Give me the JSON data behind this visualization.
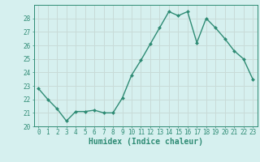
{
  "x": [
    0,
    1,
    2,
    3,
    4,
    5,
    6,
    7,
    8,
    9,
    10,
    11,
    12,
    13,
    14,
    15,
    16,
    17,
    18,
    19,
    20,
    21,
    22,
    23
  ],
  "y": [
    22.8,
    22.0,
    21.3,
    20.4,
    21.1,
    21.1,
    21.2,
    21.0,
    21.0,
    22.1,
    23.8,
    24.9,
    26.1,
    27.3,
    28.5,
    28.2,
    28.5,
    26.2,
    28.0,
    27.3,
    26.5,
    25.6,
    25.0,
    23.5
  ],
  "line_color": "#2e8b74",
  "marker": "D",
  "marker_size": 2.0,
  "background_color": "#d6f0ef",
  "grid_color": "#c8dbd8",
  "xlabel": "Humidex (Indice chaleur)",
  "ylim": [
    20,
    29
  ],
  "xlim": [
    -0.5,
    23.5
  ],
  "yticks": [
    20,
    21,
    22,
    23,
    24,
    25,
    26,
    27,
    28
  ],
  "xticks": [
    0,
    1,
    2,
    3,
    4,
    5,
    6,
    7,
    8,
    9,
    10,
    11,
    12,
    13,
    14,
    15,
    16,
    17,
    18,
    19,
    20,
    21,
    22,
    23
  ],
  "tick_label_fontsize": 5.5,
  "xlabel_fontsize": 7,
  "line_width": 1.0
}
